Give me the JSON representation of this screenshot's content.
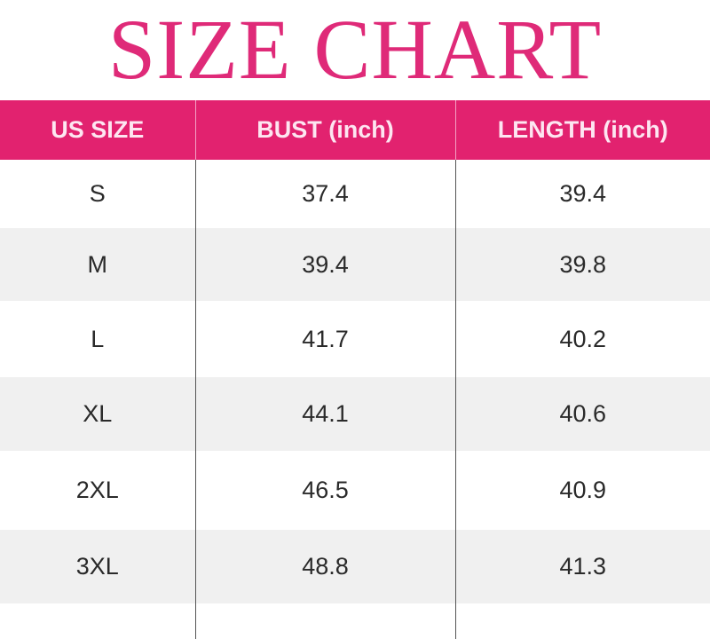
{
  "title": "SIZE CHART",
  "colors": {
    "accent": "#e2226f",
    "header_text": "#fde6f1",
    "alt_row": "#f0f0f0"
  },
  "table": {
    "headers": [
      "US SIZE",
      "BUST (inch)",
      "LENGTH (inch)"
    ],
    "rows": [
      [
        "S",
        "37.4",
        "39.4"
      ],
      [
        "M",
        "39.4",
        "39.8"
      ],
      [
        "L",
        "41.7",
        "40.2"
      ],
      [
        "XL",
        "44.1",
        "40.6"
      ],
      [
        "2XL",
        "46.5",
        "40.9"
      ],
      [
        "3XL",
        "48.8",
        "41.3"
      ]
    ]
  }
}
